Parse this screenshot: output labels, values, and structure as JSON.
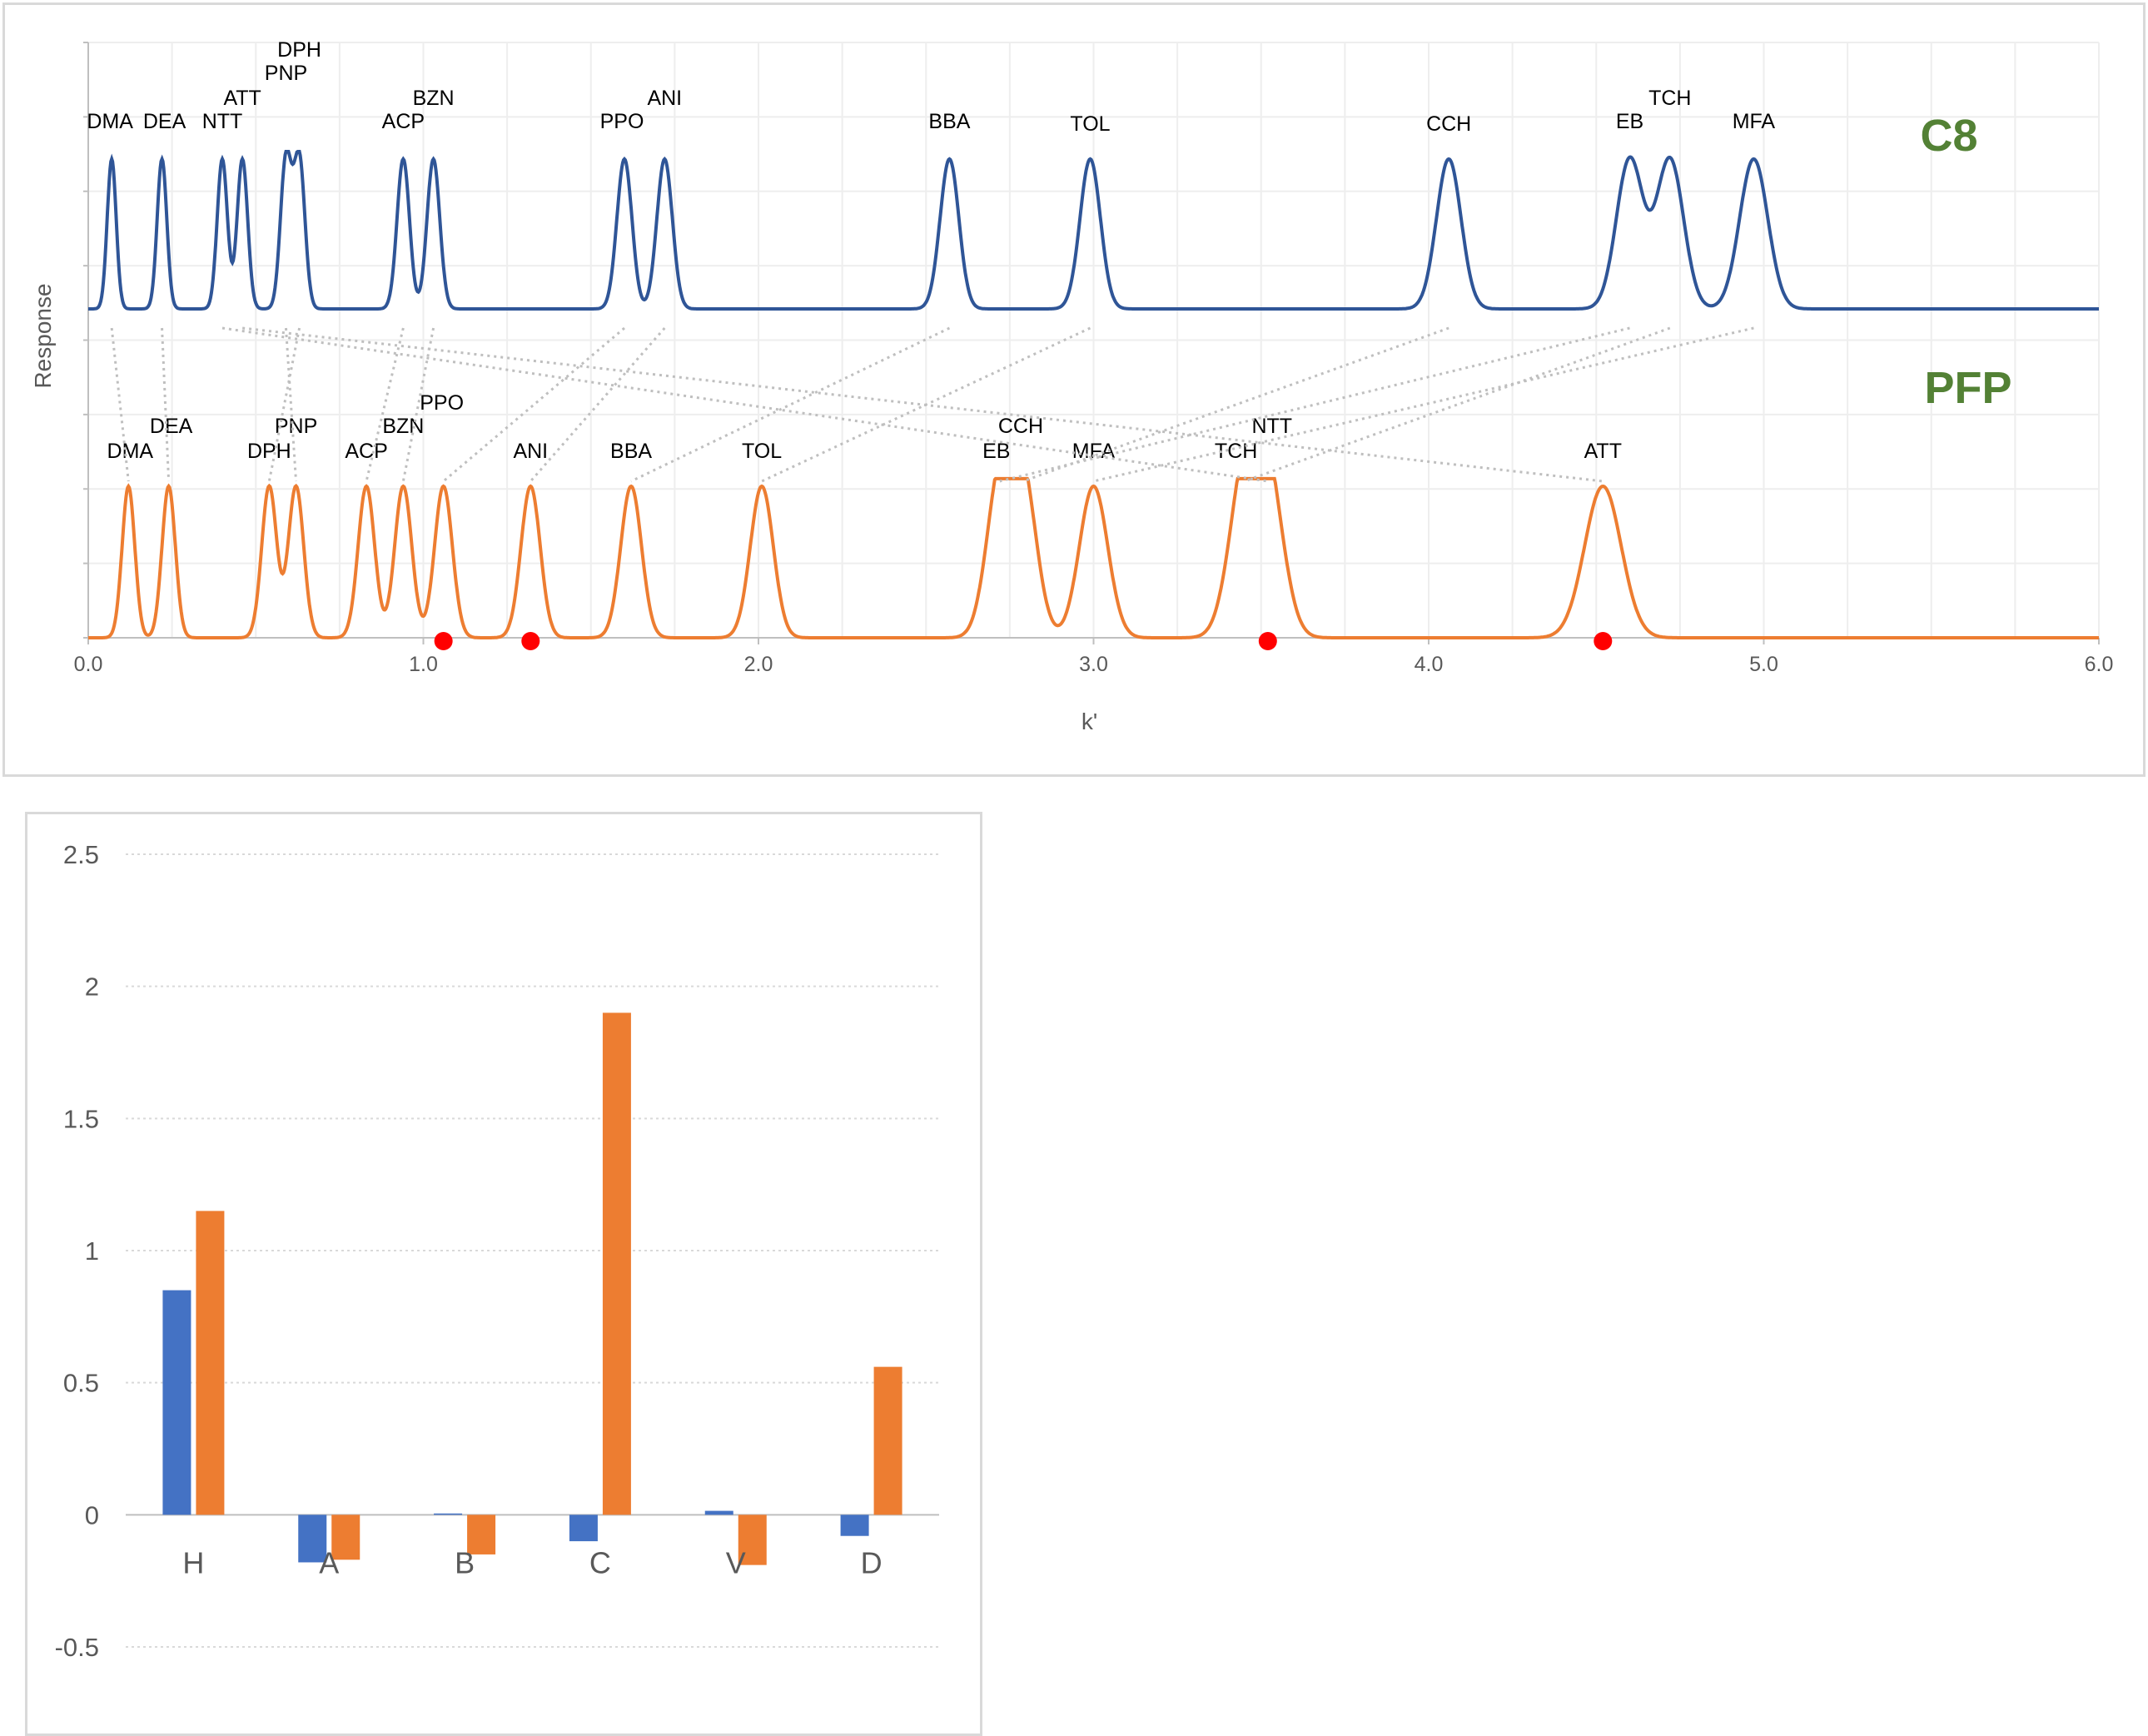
{
  "chart_data": [
    {
      "type": "line",
      "xlabel": "k'",
      "ylabel": "Response",
      "xlim": [
        0,
        6
      ],
      "x_ticks": [
        "0.0",
        "1.0",
        "2.0",
        "3.0",
        "4.0",
        "5.0",
        "6.0"
      ],
      "grid": true,
      "series": [
        {
          "name": "C8",
          "color": "#2f5597",
          "peaks": [
            {
              "label": "DMA",
              "k": 0.07
            },
            {
              "label": "DEA",
              "k": 0.22
            },
            {
              "label": "NTT",
              "k": 0.4
            },
            {
              "label": "ATT",
              "k": 0.46
            },
            {
              "label": "PNP",
              "k": 0.59
            },
            {
              "label": "DPH",
              "k": 0.63
            },
            {
              "label": "ACP",
              "k": 0.94
            },
            {
              "label": "BZN",
              "k": 1.03
            },
            {
              "label": "PPO",
              "k": 1.6
            },
            {
              "label": "ANI",
              "k": 1.72
            },
            {
              "label": "BBA",
              "k": 2.57
            },
            {
              "label": "TOL",
              "k": 2.99
            },
            {
              "label": "CCH",
              "k": 4.06
            },
            {
              "label": "EB",
              "k": 4.6
            },
            {
              "label": "TCH",
              "k": 4.72
            },
            {
              "label": "MFA",
              "k": 4.97
            }
          ]
        },
        {
          "name": "PFP",
          "color": "#ed7d31",
          "peaks": [
            {
              "label": "DMA",
              "k": 0.12
            },
            {
              "label": "DEA",
              "k": 0.24
            },
            {
              "label": "DPH",
              "k": 0.54
            },
            {
              "label": "PNP",
              "k": 0.62
            },
            {
              "label": "ACP",
              "k": 0.83
            },
            {
              "label": "BZN",
              "k": 0.94
            },
            {
              "label": "PPO",
              "k": 1.06
            },
            {
              "label": "ANI",
              "k": 1.32
            },
            {
              "label": "BBA",
              "k": 1.62
            },
            {
              "label": "TOL",
              "k": 2.01
            },
            {
              "label": "EB",
              "k": 2.72
            },
            {
              "label": "CCH",
              "k": 2.79
            },
            {
              "label": "MFA",
              "k": 3.0
            },
            {
              "label": "TCH",
              "k": 3.45
            },
            {
              "label": "NTT",
              "k": 3.52
            },
            {
              "label": "ATT",
              "k": 4.52
            }
          ]
        }
      ],
      "markers": {
        "color": "#ff0000",
        "k": [
          1.06,
          1.32,
          3.52,
          4.52
        ]
      }
    },
    {
      "type": "bar",
      "categories": [
        "H",
        "A",
        "B",
        "C",
        "V",
        "D"
      ],
      "ylim": [
        -0.5,
        2.5
      ],
      "y_ticks": [
        "-0.5",
        "0",
        "0.5",
        "1",
        "1.5",
        "2",
        "2.5"
      ],
      "grid": true,
      "series": [
        {
          "color": "#4472c4",
          "values": [
            0.85,
            -0.18,
            0.005,
            -0.1,
            0.015,
            -0.08
          ]
        },
        {
          "color": "#ed7d31",
          "values": [
            1.15,
            -0.17,
            -0.15,
            1.9,
            -0.19,
            0.56
          ]
        }
      ]
    }
  ]
}
